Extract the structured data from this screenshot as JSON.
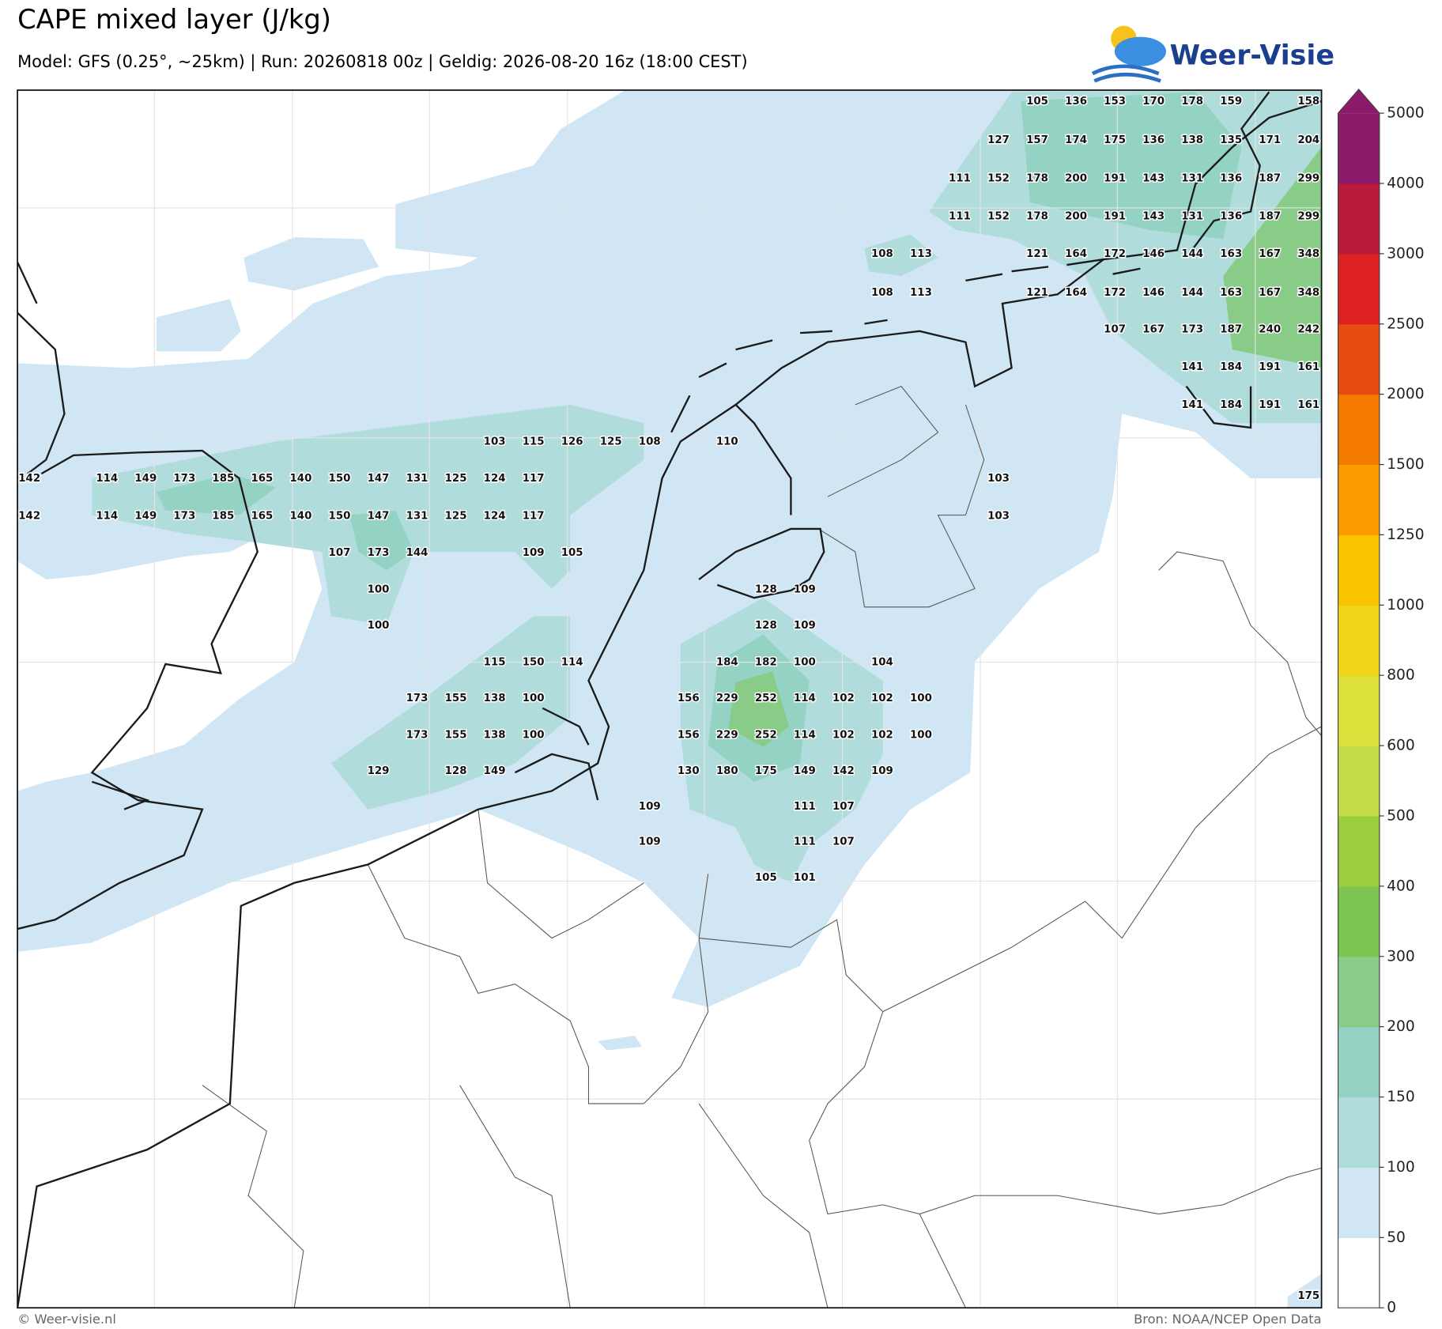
{
  "header": {
    "title": "CAPE mixed layer (J/kg)",
    "subtitle": "Model: GFS (0.25°, ~25km)  |  Run: 20260818 00z  |  Geldig: 2026-08-20 16z (18:00 CEST)"
  },
  "logo": "Weer-Visie",
  "colorbar": {
    "ticks": [
      0,
      50,
      100,
      150,
      200,
      300,
      400,
      500,
      600,
      800,
      1000,
      1250,
      1500,
      2000,
      2500,
      3000,
      4000,
      5000
    ],
    "colors": [
      "#ffffff",
      "#d0e6f5",
      "#b0dcdc",
      "#94d2c4",
      "#88cc88",
      "#7dc452",
      "#9acd3f",
      "#c5dc48",
      "#dde03a",
      "#f0d51a",
      "#fac300",
      "#fa9b00",
      "#f57a00",
      "#e84c10",
      "#dd2020",
      "#b81c3a",
      "#8c1a6a"
    ]
  },
  "grid_labels": [
    [
      null,
      null,
      null,
      null,
      null,
      null,
      null,
      null,
      null,
      null,
      null,
      null,
      null,
      null,
      null,
      null,
      null,
      null,
      null,
      null,
      null,
      null,
      null,
      null,
      null,
      null,
      105,
      136,
      153,
      170,
      178,
      159,
      null,
      158
    ],
    [
      null,
      null,
      null,
      null,
      null,
      null,
      null,
      null,
      null,
      null,
      null,
      null,
      null,
      null,
      null,
      null,
      null,
      null,
      null,
      null,
      null,
      null,
      null,
      null,
      null,
      127,
      157,
      174,
      175,
      136,
      138,
      135,
      171,
      204
    ],
    [
      null,
      null,
      null,
      null,
      null,
      null,
      null,
      null,
      null,
      null,
      null,
      null,
      null,
      null,
      null,
      null,
      null,
      null,
      null,
      null,
      null,
      null,
      null,
      null,
      111,
      152,
      178,
      200,
      191,
      143,
      131,
      136,
      187,
      299
    ],
    [
      null,
      null,
      null,
      null,
      null,
      null,
      null,
      null,
      null,
      null,
      null,
      null,
      null,
      null,
      null,
      null,
      null,
      null,
      null,
      null,
      null,
      null,
      null,
      null,
      111,
      152,
      178,
      200,
      191,
      143,
      131,
      136,
      187,
      299
    ],
    [
      null,
      null,
      null,
      null,
      null,
      null,
      null,
      null,
      null,
      null,
      null,
      null,
      null,
      null,
      null,
      null,
      null,
      null,
      null,
      null,
      null,
      null,
      108,
      113,
      null,
      null,
      121,
      164,
      172,
      146,
      144,
      163,
      167,
      348
    ],
    [
      null,
      null,
      null,
      null,
      null,
      null,
      null,
      null,
      null,
      null,
      null,
      null,
      null,
      null,
      null,
      null,
      null,
      null,
      null,
      null,
      null,
      null,
      108,
      113,
      null,
      null,
      121,
      164,
      172,
      146,
      144,
      163,
      167,
      348
    ],
    [
      null,
      null,
      null,
      null,
      null,
      null,
      null,
      null,
      null,
      null,
      null,
      null,
      null,
      null,
      null,
      null,
      null,
      null,
      null,
      null,
      null,
      null,
      null,
      null,
      null,
      null,
      null,
      null,
      107,
      167,
      173,
      187,
      240,
      242
    ],
    [
      null,
      null,
      null,
      null,
      null,
      null,
      null,
      null,
      null,
      null,
      null,
      null,
      null,
      null,
      null,
      null,
      null,
      null,
      null,
      null,
      null,
      null,
      null,
      null,
      null,
      null,
      null,
      null,
      null,
      null,
      141,
      184,
      191,
      161
    ],
    [
      null,
      null,
      null,
      null,
      null,
      null,
      null,
      null,
      null,
      null,
      null,
      null,
      null,
      null,
      null,
      null,
      null,
      null,
      null,
      null,
      null,
      null,
      null,
      null,
      null,
      null,
      null,
      null,
      null,
      null,
      141,
      184,
      191,
      161
    ],
    [
      null,
      null,
      null,
      null,
      null,
      null,
      null,
      null,
      null,
      null,
      null,
      null,
      103,
      115,
      126,
      125,
      108,
      null,
      110,
      null,
      null,
      null,
      null,
      null,
      null,
      null,
      null,
      null,
      null,
      null,
      null,
      null,
      null,
      null
    ],
    [
      142,
      null,
      114,
      149,
      173,
      185,
      165,
      140,
      150,
      147,
      131,
      125,
      124,
      117,
      null,
      null,
      null,
      null,
      null,
      null,
      null,
      null,
      null,
      null,
      null,
      103,
      null,
      null,
      null,
      null,
      null,
      null,
      null,
      null
    ],
    [
      142,
      null,
      114,
      149,
      173,
      185,
      165,
      140,
      150,
      147,
      131,
      125,
      124,
      117,
      null,
      null,
      null,
      null,
      null,
      null,
      null,
      null,
      null,
      null,
      null,
      103,
      null,
      null,
      null,
      null,
      null,
      null,
      null,
      null
    ],
    [
      null,
      null,
      null,
      null,
      null,
      null,
      null,
      null,
      107,
      173,
      144,
      null,
      null,
      109,
      105,
      null,
      null,
      null,
      null,
      null,
      null,
      null,
      null,
      null,
      null,
      null,
      null,
      null,
      null,
      null,
      null,
      null,
      null,
      null
    ],
    [
      null,
      null,
      null,
      null,
      null,
      null,
      null,
      null,
      null,
      100,
      null,
      null,
      null,
      null,
      null,
      null,
      null,
      null,
      null,
      128,
      109,
      null,
      null,
      null,
      null,
      null,
      null,
      null,
      null,
      null,
      null,
      null,
      null,
      null
    ],
    [
      null,
      null,
      null,
      null,
      null,
      null,
      null,
      null,
      null,
      100,
      null,
      null,
      null,
      null,
      null,
      null,
      null,
      null,
      null,
      128,
      109,
      null,
      null,
      null,
      null,
      null,
      null,
      null,
      null,
      null,
      null,
      null,
      null,
      null
    ],
    [
      null,
      null,
      null,
      null,
      null,
      null,
      null,
      null,
      null,
      null,
      null,
      null,
      115,
      150,
      114,
      null,
      null,
      null,
      184,
      182,
      100,
      null,
      104,
      null,
      null,
      null,
      null,
      null,
      null,
      null,
      null,
      null,
      null,
      null
    ],
    [
      null,
      null,
      null,
      null,
      null,
      null,
      null,
      null,
      null,
      null,
      173,
      155,
      138,
      100,
      null,
      null,
      null,
      156,
      229,
      252,
      114,
      102,
      102,
      100,
      null,
      null,
      null,
      null,
      null,
      null,
      null,
      null,
      null,
      null
    ],
    [
      null,
      null,
      null,
      null,
      null,
      null,
      null,
      null,
      null,
      null,
      173,
      155,
      138,
      100,
      null,
      null,
      null,
      156,
      229,
      252,
      114,
      102,
      102,
      100,
      null,
      null,
      null,
      null,
      null,
      null,
      null,
      null,
      null,
      null
    ],
    [
      null,
      null,
      null,
      null,
      null,
      null,
      null,
      null,
      null,
      129,
      null,
      128,
      149,
      null,
      null,
      null,
      null,
      130,
      180,
      175,
      149,
      142,
      109,
      null,
      null,
      null,
      null,
      null,
      null,
      null,
      null,
      null,
      null,
      null
    ],
    [
      null,
      null,
      null,
      null,
      null,
      null,
      null,
      null,
      null,
      null,
      null,
      null,
      null,
      null,
      null,
      null,
      109,
      null,
      null,
      null,
      111,
      107,
      null,
      null,
      null,
      null,
      null,
      null,
      null,
      null,
      null,
      null,
      null,
      null
    ],
    [
      null,
      null,
      null,
      null,
      null,
      null,
      null,
      null,
      null,
      null,
      null,
      null,
      null,
      null,
      null,
      null,
      109,
      null,
      null,
      null,
      111,
      107,
      null,
      null,
      null,
      null,
      null,
      null,
      null,
      null,
      null,
      null,
      null,
      null
    ],
    [
      null,
      null,
      null,
      null,
      null,
      null,
      null,
      null,
      null,
      null,
      null,
      null,
      null,
      null,
      null,
      null,
      null,
      null,
      null,
      105,
      101,
      null,
      null,
      null,
      null,
      null,
      null,
      null,
      null,
      null,
      null,
      null,
      null,
      null
    ],
    [
      null,
      null,
      null,
      null,
      null,
      null,
      null,
      null,
      null,
      null,
      null,
      null,
      null,
      null,
      null,
      null,
      null,
      null,
      null,
      null,
      null,
      null,
      null,
      null,
      null,
      null,
      null,
      null,
      null,
      null,
      null,
      null,
      null,
      175
    ]
  ],
  "footer": {
    "left": "© Weer-visie.nl",
    "right": "Bron: NOAA/NCEP Open Data"
  }
}
